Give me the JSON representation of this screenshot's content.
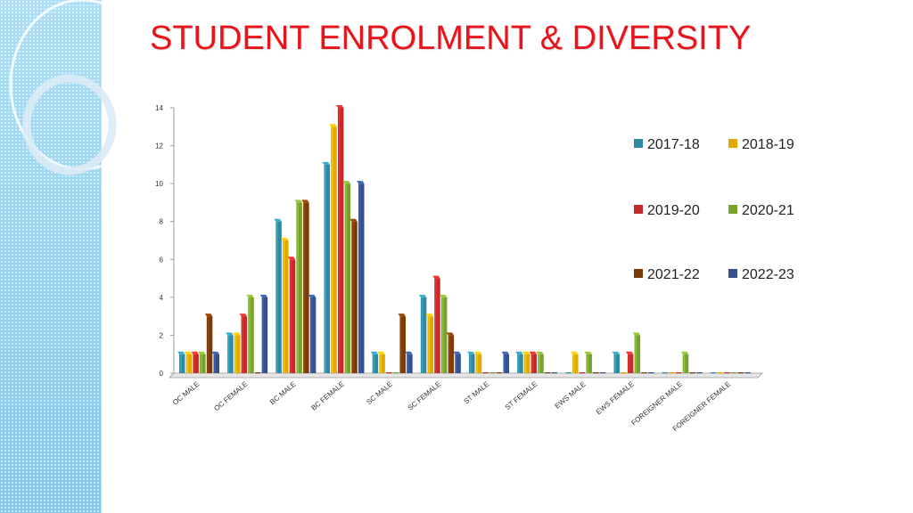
{
  "title": "STUDENT ENROLMENT & DIVERSITY",
  "colors": {
    "title": "#e8141c",
    "panel": "#8fd0ef"
  },
  "chart_data": {
    "type": "bar",
    "categories": [
      "OC MALE",
      "OC FEMALE",
      "BC MALE",
      "BC FEMALE",
      "SC MALE",
      "SC FEMALE",
      "ST MALE",
      "ST FEMALE",
      "EWS MALE",
      "EWS FEMALE",
      "FOREIGNER MALE",
      "FOREIGNER FEMALE"
    ],
    "series": [
      {
        "name": "2017-18",
        "color": "#2e8aa3",
        "values": [
          1,
          2,
          8,
          11,
          1,
          4,
          1,
          1,
          0,
          1,
          0,
          0
        ]
      },
      {
        "name": "2018-19",
        "color": "#e3a800",
        "values": [
          1,
          2,
          7,
          13,
          1,
          3,
          1,
          1,
          1,
          0,
          0,
          0
        ]
      },
      {
        "name": "2019-20",
        "color": "#c42a2a",
        "values": [
          1,
          3,
          6,
          14,
          0,
          5,
          0,
          1,
          0,
          1,
          0,
          0
        ]
      },
      {
        "name": "2020-21",
        "color": "#78a22f",
        "values": [
          1,
          4,
          9,
          10,
          0,
          4,
          0,
          1,
          1,
          2,
          1,
          0
        ]
      },
      {
        "name": "2021-22",
        "color": "#7b3a06",
        "values": [
          3,
          0,
          9,
          8,
          3,
          2,
          0,
          0,
          0,
          0,
          0,
          0
        ]
      },
      {
        "name": "2022-23",
        "color": "#34508f",
        "values": [
          1,
          4,
          4,
          10,
          1,
          1,
          1,
          0,
          0,
          0,
          0,
          0
        ]
      }
    ],
    "ylim": [
      0,
      14
    ],
    "yticks": [
      "0",
      "2",
      "4",
      "6",
      "8",
      "10",
      "12",
      "14"
    ],
    "legend_position": "right",
    "grid": false
  }
}
